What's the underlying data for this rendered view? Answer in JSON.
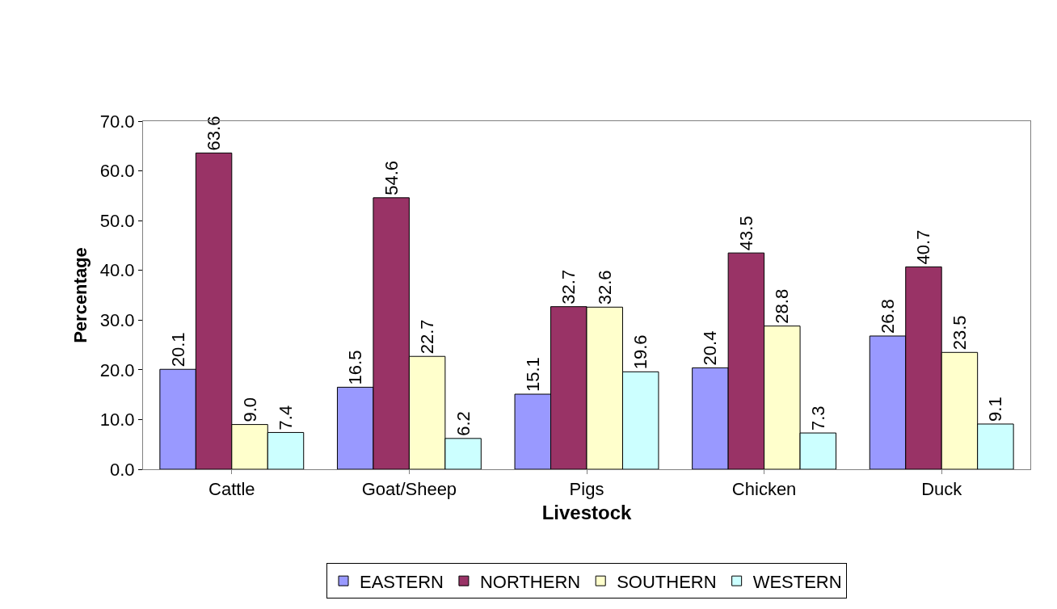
{
  "chart_data": {
    "type": "bar",
    "xlabel": "Livestock",
    "ylabel": "Percentage",
    "categories": [
      "Cattle",
      "Goat/Sheep",
      "Pigs",
      "Chicken",
      "Duck"
    ],
    "series": [
      {
        "name": "EASTERN",
        "color": "#9999ff",
        "values": [
          20.1,
          16.5,
          15.1,
          20.4,
          26.8
        ],
        "value_labels": [
          "20.1",
          "16.5",
          "15.1",
          "20.4",
          "26.8"
        ]
      },
      {
        "name": "NORTHERN",
        "color": "#993366",
        "values": [
          63.6,
          54.6,
          32.7,
          43.5,
          40.7
        ],
        "value_labels": [
          "63.6",
          "54.6",
          "32.7",
          "43.5",
          "40.7"
        ]
      },
      {
        "name": "SOUTHERN",
        "color": "#ffffcc",
        "values": [
          9.0,
          22.7,
          32.6,
          28.8,
          23.5
        ],
        "value_labels": [
          "9.0",
          "22.7",
          "32.6",
          "28.8",
          "23.5"
        ]
      },
      {
        "name": "WESTERN",
        "color": "#ccffff",
        "values": [
          7.4,
          6.2,
          19.6,
          7.3,
          9.1
        ],
        "value_labels": [
          "7.4",
          "6.2",
          "19.6",
          "7.3",
          "9.1"
        ]
      }
    ],
    "ylim": [
      0,
      70
    ],
    "yticks": [
      {
        "value": 0,
        "label": "0.0"
      },
      {
        "value": 10,
        "label": "10.0"
      },
      {
        "value": 20,
        "label": "20.0"
      },
      {
        "value": 30,
        "label": "30.0"
      },
      {
        "value": 40,
        "label": "40.0"
      },
      {
        "value": 50,
        "label": "50.0"
      },
      {
        "value": 60,
        "label": "60.0"
      },
      {
        "value": 70,
        "label": "70.0"
      }
    ],
    "grid": false,
    "legend": "bottom"
  }
}
